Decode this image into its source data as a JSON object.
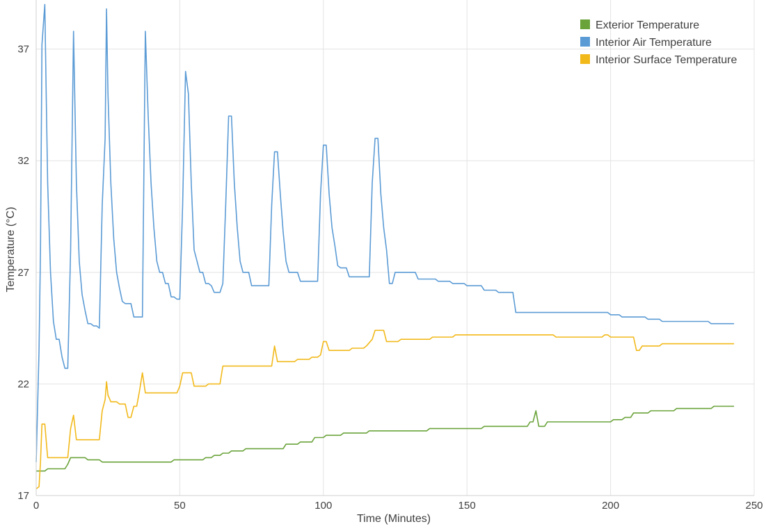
{
  "chart_data": {
    "type": "line",
    "xlabel": "Time (Minutes)",
    "ylabel": "Temperature (°C)",
    "xlim": [
      0,
      250
    ],
    "ylim": [
      17,
      39.2
    ],
    "x_ticks": [
      0,
      50,
      100,
      150,
      200,
      250
    ],
    "y_ticks": [
      17,
      22,
      27,
      32,
      37
    ],
    "grid": true,
    "legend_position": "top-right",
    "series": [
      {
        "name": "Exterior Temperature",
        "color": "#6aa33a",
        "points": [
          [
            0,
            18.1
          ],
          [
            3,
            18.1
          ],
          [
            4,
            18.2
          ],
          [
            10,
            18.2
          ],
          [
            11,
            18.4
          ],
          [
            12,
            18.7
          ],
          [
            17,
            18.7
          ],
          [
            18,
            18.6
          ],
          [
            22,
            18.6
          ],
          [
            23,
            18.5
          ],
          [
            47,
            18.5
          ],
          [
            48,
            18.6
          ],
          [
            58,
            18.6
          ],
          [
            59,
            18.7
          ],
          [
            61,
            18.7
          ],
          [
            62,
            18.8
          ],
          [
            64,
            18.8
          ],
          [
            65,
            18.9
          ],
          [
            67,
            18.9
          ],
          [
            68,
            19.0
          ],
          [
            72,
            19.0
          ],
          [
            73,
            19.1
          ],
          [
            86,
            19.1
          ],
          [
            87,
            19.3
          ],
          [
            91,
            19.3
          ],
          [
            92,
            19.4
          ],
          [
            96,
            19.4
          ],
          [
            97,
            19.6
          ],
          [
            100,
            19.6
          ],
          [
            101,
            19.7
          ],
          [
            106,
            19.7
          ],
          [
            107,
            19.8
          ],
          [
            115,
            19.8
          ],
          [
            116,
            19.9
          ],
          [
            136,
            19.9
          ],
          [
            137,
            20.0
          ],
          [
            155,
            20.0
          ],
          [
            156,
            20.1
          ],
          [
            171,
            20.1
          ],
          [
            172,
            20.3
          ],
          [
            173,
            20.3
          ],
          [
            174,
            20.8
          ],
          [
            175,
            20.1
          ],
          [
            177,
            20.1
          ],
          [
            178,
            20.3
          ],
          [
            200,
            20.3
          ],
          [
            201,
            20.4
          ],
          [
            204,
            20.4
          ],
          [
            205,
            20.5
          ],
          [
            207,
            20.5
          ],
          [
            208,
            20.7
          ],
          [
            213,
            20.7
          ],
          [
            214,
            20.8
          ],
          [
            222,
            20.8
          ],
          [
            223,
            20.9
          ],
          [
            235,
            20.9
          ],
          [
            236,
            21.0
          ],
          [
            243,
            21.0
          ]
        ]
      },
      {
        "name": "Interior Air Temperature",
        "color": "#5b9bd5",
        "points": [
          [
            0,
            18.5
          ],
          [
            1,
            23.5
          ],
          [
            1.5,
            28
          ],
          [
            2,
            37.2
          ],
          [
            3,
            39.0
          ],
          [
            3.5,
            35
          ],
          [
            4,
            31
          ],
          [
            5,
            27
          ],
          [
            6,
            24.8
          ],
          [
            7,
            24
          ],
          [
            8,
            24
          ],
          [
            9,
            23.2
          ],
          [
            10,
            22.7
          ],
          [
            11,
            22.7
          ],
          [
            12,
            28
          ],
          [
            13,
            37.8
          ],
          [
            14,
            31
          ],
          [
            15,
            27.5
          ],
          [
            16,
            26
          ],
          [
            17,
            25.3
          ],
          [
            18,
            24.7
          ],
          [
            19,
            24.7
          ],
          [
            20,
            24.6
          ],
          [
            21,
            24.6
          ],
          [
            22,
            24.5
          ],
          [
            23,
            30
          ],
          [
            24,
            33
          ],
          [
            24.5,
            38.8
          ],
          [
            25,
            35
          ],
          [
            26,
            31
          ],
          [
            27,
            28.5
          ],
          [
            28,
            27
          ],
          [
            29,
            26.3
          ],
          [
            30,
            25.7
          ],
          [
            31,
            25.6
          ],
          [
            32,
            25.6
          ],
          [
            33,
            25.6
          ],
          [
            34,
            25.0
          ],
          [
            37,
            25.0
          ],
          [
            38,
            37.8
          ],
          [
            39,
            34
          ],
          [
            40,
            31
          ],
          [
            41,
            29
          ],
          [
            42,
            27.5
          ],
          [
            43,
            27
          ],
          [
            44,
            27
          ],
          [
            45,
            26.5
          ],
          [
            46,
            26.5
          ],
          [
            47,
            25.9
          ],
          [
            48,
            25.9
          ],
          [
            49,
            25.8
          ],
          [
            50,
            25.8
          ],
          [
            51,
            30
          ],
          [
            52,
            36.0
          ],
          [
            53,
            35
          ],
          [
            54,
            31
          ],
          [
            55,
            28
          ],
          [
            56,
            27.5
          ],
          [
            57,
            27
          ],
          [
            58,
            27
          ],
          [
            59,
            26.5
          ],
          [
            60,
            26.5
          ],
          [
            61,
            26.4
          ],
          [
            62,
            26.1
          ],
          [
            64,
            26.1
          ],
          [
            65,
            26.5
          ],
          [
            66,
            30
          ],
          [
            67,
            34.0
          ],
          [
            68,
            34.0
          ],
          [
            69,
            31
          ],
          [
            70,
            29
          ],
          [
            71,
            27.5
          ],
          [
            72,
            27
          ],
          [
            74,
            27
          ],
          [
            75,
            26.4
          ],
          [
            81,
            26.4
          ],
          [
            82,
            30
          ],
          [
            83,
            32.4
          ],
          [
            84,
            32.4
          ],
          [
            85,
            30.5
          ],
          [
            86,
            28.8
          ],
          [
            87,
            27.5
          ],
          [
            88,
            27
          ],
          [
            91,
            27
          ],
          [
            92,
            26.6
          ],
          [
            98,
            26.6
          ],
          [
            99,
            30.5
          ],
          [
            100,
            32.7
          ],
          [
            101,
            32.7
          ],
          [
            102,
            30.5
          ],
          [
            103,
            29
          ],
          [
            104,
            28.2
          ],
          [
            105,
            27.3
          ],
          [
            106,
            27.2
          ],
          [
            108,
            27.2
          ],
          [
            109,
            26.8
          ],
          [
            116,
            26.8
          ],
          [
            117,
            31
          ],
          [
            118,
            33.0
          ],
          [
            119,
            33.0
          ],
          [
            120,
            30.5
          ],
          [
            121,
            29
          ],
          [
            122,
            28
          ],
          [
            123,
            26.5
          ],
          [
            124,
            26.5
          ],
          [
            125,
            27
          ],
          [
            132,
            27
          ],
          [
            133,
            26.7
          ],
          [
            139,
            26.7
          ],
          [
            140,
            26.6
          ],
          [
            144,
            26.6
          ],
          [
            145,
            26.5
          ],
          [
            149,
            26.5
          ],
          [
            150,
            26.4
          ],
          [
            155,
            26.4
          ],
          [
            156,
            26.2
          ],
          [
            160,
            26.2
          ],
          [
            161,
            26.1
          ],
          [
            166,
            26.1
          ],
          [
            167,
            25.2
          ],
          [
            199,
            25.2
          ],
          [
            200,
            25.1
          ],
          [
            203,
            25.1
          ],
          [
            204,
            25.0
          ],
          [
            212,
            25.0
          ],
          [
            213,
            24.9
          ],
          [
            217,
            24.9
          ],
          [
            218,
            24.8
          ],
          [
            234,
            24.8
          ],
          [
            235,
            24.7
          ],
          [
            243,
            24.7
          ]
        ]
      },
      {
        "name": "Interior Surface Temperature",
        "color": "#f2b91a",
        "points": [
          [
            0,
            17.3
          ],
          [
            1,
            17.4
          ],
          [
            1.5,
            18.5
          ],
          [
            2,
            20.2
          ],
          [
            3,
            20.2
          ],
          [
            4,
            18.7
          ],
          [
            11,
            18.7
          ],
          [
            12,
            20.0
          ],
          [
            13,
            20.6
          ],
          [
            14,
            19.5
          ],
          [
            22,
            19.5
          ],
          [
            23,
            20.8
          ],
          [
            24,
            21.3
          ],
          [
            24.5,
            22.1
          ],
          [
            25,
            21.5
          ],
          [
            26,
            21.2
          ],
          [
            28,
            21.2
          ],
          [
            29,
            21.1
          ],
          [
            31,
            21.1
          ],
          [
            32,
            20.5
          ],
          [
            33,
            20.5
          ],
          [
            34,
            21.0
          ],
          [
            35,
            21.0
          ],
          [
            36,
            21.7
          ],
          [
            37,
            22.5
          ],
          [
            38,
            21.6
          ],
          [
            49,
            21.6
          ],
          [
            50,
            21.9
          ],
          [
            51,
            22.5
          ],
          [
            54,
            22.5
          ],
          [
            55,
            21.9
          ],
          [
            59,
            21.9
          ],
          [
            60,
            22.0
          ],
          [
            64,
            22.0
          ],
          [
            65,
            22.8
          ],
          [
            82,
            22.8
          ],
          [
            83,
            23.7
          ],
          [
            84,
            23.0
          ],
          [
            90,
            23.0
          ],
          [
            91,
            23.1
          ],
          [
            95,
            23.1
          ],
          [
            96,
            23.2
          ],
          [
            98,
            23.2
          ],
          [
            99,
            23.3
          ],
          [
            100,
            23.9
          ],
          [
            101,
            23.9
          ],
          [
            102,
            23.5
          ],
          [
            109,
            23.5
          ],
          [
            110,
            23.6
          ],
          [
            114,
            23.6
          ],
          [
            115,
            23.7
          ],
          [
            117,
            24.0
          ],
          [
            118,
            24.4
          ],
          [
            121,
            24.4
          ],
          [
            122,
            23.9
          ],
          [
            126,
            23.9
          ],
          [
            127,
            24.0
          ],
          [
            137,
            24.0
          ],
          [
            138,
            24.1
          ],
          [
            145,
            24.1
          ],
          [
            146,
            24.2
          ],
          [
            180,
            24.2
          ],
          [
            181,
            24.1
          ],
          [
            197,
            24.1
          ],
          [
            198,
            24.2
          ],
          [
            199,
            24.2
          ],
          [
            200,
            24.1
          ],
          [
            208,
            24.1
          ],
          [
            209,
            23.5
          ],
          [
            210,
            23.5
          ],
          [
            211,
            23.7
          ],
          [
            217,
            23.7
          ],
          [
            218,
            23.8
          ],
          [
            243,
            23.8
          ]
        ]
      }
    ]
  }
}
